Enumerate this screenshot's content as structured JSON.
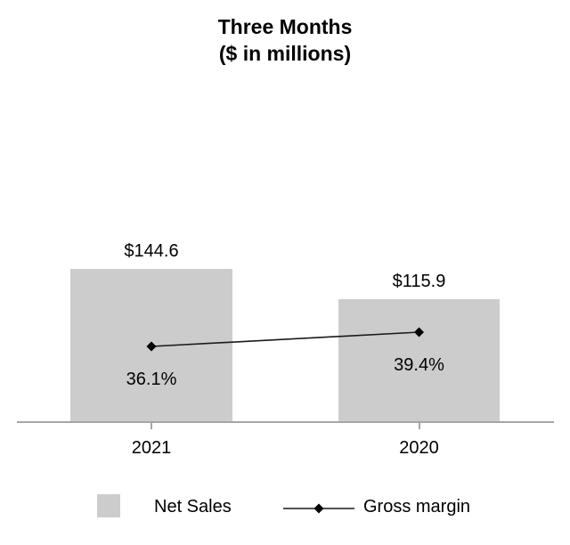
{
  "chart_data": {
    "type": "bar",
    "subtype": "bar-line-combo",
    "title": "Three Months",
    "subtitle": "($ in millions)",
    "categories": [
      "2021",
      "2020"
    ],
    "series": [
      {
        "name": "Net Sales",
        "type": "bar",
        "values": [
          144.6,
          115.9
        ],
        "data_labels": [
          "$144.6",
          "$115.9"
        ],
        "color": "#cccccc"
      },
      {
        "name": "Gross margin",
        "type": "line",
        "marker": "diamond",
        "values": [
          36.1,
          39.4
        ],
        "data_labels": [
          "36.1%",
          "39.4%"
        ],
        "color": "#1a1a1a"
      }
    ],
    "xlabel": "",
    "ylabel": "",
    "ylim": [
      0,
      160
    ],
    "grid": false,
    "legend_position": "bottom",
    "background": "#ffffff",
    "axis_color": "#a6a6a6",
    "text_color": "#000000"
  }
}
